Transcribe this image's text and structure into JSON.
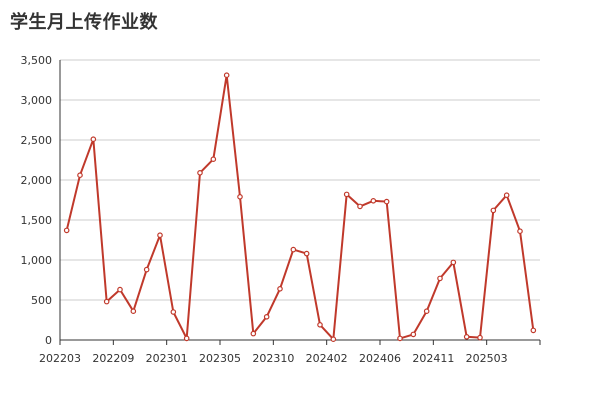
{
  "chart_data": {
    "type": "line",
    "title": "学生月上传作业数",
    "xlabel": "",
    "ylabel": "",
    "ylim": [
      0,
      3500
    ],
    "y_ticks": [
      0,
      500,
      1000,
      1500,
      2000,
      2500,
      3000,
      3500
    ],
    "y_tick_labels": [
      "0",
      "500",
      "1,000",
      "1,500",
      "2,000",
      "2,500",
      "3,000",
      "3,500"
    ],
    "x_tick_labels": [
      "202203",
      "202209",
      "202301",
      "202305",
      "202310",
      "202402",
      "202406",
      "202411",
      "202503"
    ],
    "grid": true,
    "series_color": "#c0392b",
    "values": [
      1370,
      2060,
      2510,
      480,
      630,
      360,
      880,
      1310,
      350,
      20,
      2090,
      2260,
      3310,
      1790,
      80,
      290,
      640,
      1130,
      1080,
      190,
      10,
      1820,
      1670,
      1740,
      1730,
      20,
      70,
      360,
      770,
      970,
      40,
      30,
      1620,
      1810,
      1360,
      120
    ]
  }
}
